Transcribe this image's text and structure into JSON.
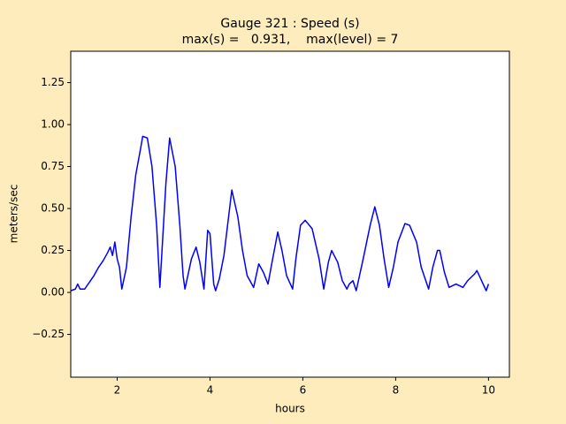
{
  "chart_data": {
    "type": "line",
    "title": "Gauge 321 : Speed (s)",
    "subtitle": "max(s) =   0.931,    max(level) = 7",
    "x_label": "hours",
    "y_label": "meters/sec",
    "x": [
      1.0,
      1.1,
      1.15,
      1.2,
      1.3,
      1.4,
      1.5,
      1.6,
      1.7,
      1.8,
      1.85,
      1.9,
      1.95,
      2.0,
      2.05,
      2.1,
      2.2,
      2.3,
      2.4,
      2.5,
      2.55,
      2.65,
      2.75,
      2.85,
      2.92,
      3.05,
      3.13,
      3.25,
      3.35,
      3.42,
      3.46,
      3.6,
      3.7,
      3.78,
      3.87,
      3.95,
      4.0,
      4.08,
      4.12,
      4.2,
      4.3,
      4.4,
      4.47,
      4.6,
      4.7,
      4.8,
      4.94,
      5.05,
      5.15,
      5.25,
      5.35,
      5.46,
      5.55,
      5.65,
      5.78,
      5.85,
      5.95,
      6.05,
      6.2,
      6.35,
      6.45,
      6.55,
      6.62,
      6.75,
      6.85,
      6.95,
      7.0,
      7.08,
      7.15,
      7.3,
      7.45,
      7.55,
      7.65,
      7.75,
      7.85,
      7.95,
      8.05,
      8.2,
      8.3,
      8.45,
      8.55,
      8.71,
      8.8,
      8.9,
      8.95,
      9.05,
      9.15,
      9.3,
      9.45,
      9.55,
      9.7,
      9.75,
      9.85,
      9.95,
      10.0
    ],
    "series": [
      {
        "name": "s",
        "color": "#0000ff",
        "values": [
          0.01,
          0.02,
          0.05,
          0.02,
          0.02,
          0.06,
          0.1,
          0.15,
          0.19,
          0.24,
          0.27,
          0.22,
          0.3,
          0.2,
          0.15,
          0.02,
          0.15,
          0.45,
          0.7,
          0.85,
          0.93,
          0.92,
          0.75,
          0.4,
          0.03,
          0.65,
          0.92,
          0.75,
          0.4,
          0.1,
          0.02,
          0.2,
          0.27,
          0.18,
          0.02,
          0.37,
          0.35,
          0.05,
          0.01,
          0.08,
          0.22,
          0.45,
          0.61,
          0.45,
          0.25,
          0.1,
          0.03,
          0.17,
          0.12,
          0.05,
          0.2,
          0.36,
          0.25,
          0.1,
          0.02,
          0.2,
          0.4,
          0.43,
          0.38,
          0.2,
          0.02,
          0.18,
          0.25,
          0.18,
          0.07,
          0.02,
          0.05,
          0.07,
          0.01,
          0.2,
          0.4,
          0.51,
          0.4,
          0.2,
          0.03,
          0.15,
          0.3,
          0.41,
          0.4,
          0.3,
          0.15,
          0.02,
          0.15,
          0.25,
          0.25,
          0.12,
          0.03,
          0.05,
          0.03,
          0.07,
          0.11,
          0.13,
          0.07,
          0.01,
          0.05
        ]
      }
    ],
    "xlim": [
      1.0,
      10.45
    ],
    "ylim": [
      -0.505,
      1.437
    ],
    "xticks": [
      2,
      4,
      6,
      8,
      10
    ],
    "yticks": [
      {
        "value": -0.25,
        "label": "−0.25"
      },
      {
        "value": 0,
        "label": "0.00"
      },
      {
        "value": 0.25,
        "label": "0.25"
      },
      {
        "value": 0.5,
        "label": "0.50"
      },
      {
        "value": 0.75,
        "label": "0.75"
      },
      {
        "value": 1.0,
        "label": "1.00"
      },
      {
        "value": 1.25,
        "label": "1.25"
      }
    ],
    "grid": false
  }
}
